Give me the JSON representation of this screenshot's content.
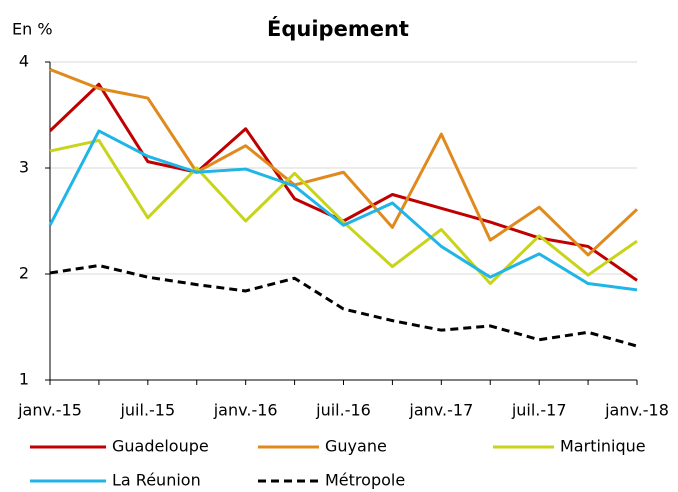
{
  "chart_data": {
    "type": "line",
    "title": "Équipement",
    "y_label": "En %",
    "categories": [
      "janv.-15",
      null,
      "juil.-15",
      null,
      "janv.-16",
      null,
      "juil.-16",
      null,
      "janv.-17",
      null,
      "juil.-17",
      null,
      "janv.-18"
    ],
    "series": [
      {
        "name": "Guadeloupe",
        "color": "#c00000",
        "values": [
          3.35,
          3.79,
          3.06,
          2.96,
          3.37,
          2.71,
          2.5,
          2.75,
          2.62,
          2.49,
          2.34,
          2.26,
          1.94
        ]
      },
      {
        "name": "Guyane",
        "color": "#e08a1e",
        "values": [
          3.93,
          3.75,
          3.66,
          2.96,
          3.21,
          2.84,
          2.96,
          2.44,
          3.32,
          2.32,
          2.63,
          2.18,
          2.61
        ]
      },
      {
        "name": "Martinique",
        "color": "#c8d419",
        "values": [
          3.16,
          3.26,
          2.53,
          3.0,
          2.5,
          2.95,
          2.49,
          2.07,
          2.42,
          1.91,
          2.36,
          1.99,
          2.31
        ]
      },
      {
        "name": "La Réunion",
        "color": "#1fb5e6",
        "values": [
          2.46,
          3.35,
          3.11,
          2.96,
          2.99,
          2.83,
          2.46,
          2.67,
          2.26,
          1.97,
          2.19,
          1.91,
          1.85
        ]
      },
      {
        "name": "Métropole",
        "color": "#000000",
        "dashed": true,
        "values": [
          2.01,
          2.08,
          1.97,
          1.9,
          1.84,
          1.96,
          1.67,
          1.56,
          1.47,
          1.51,
          1.38,
          1.45,
          1.32
        ]
      }
    ],
    "ylim": [
      1,
      4
    ],
    "yticks": [
      1,
      2,
      3,
      4
    ],
    "grid": true
  }
}
